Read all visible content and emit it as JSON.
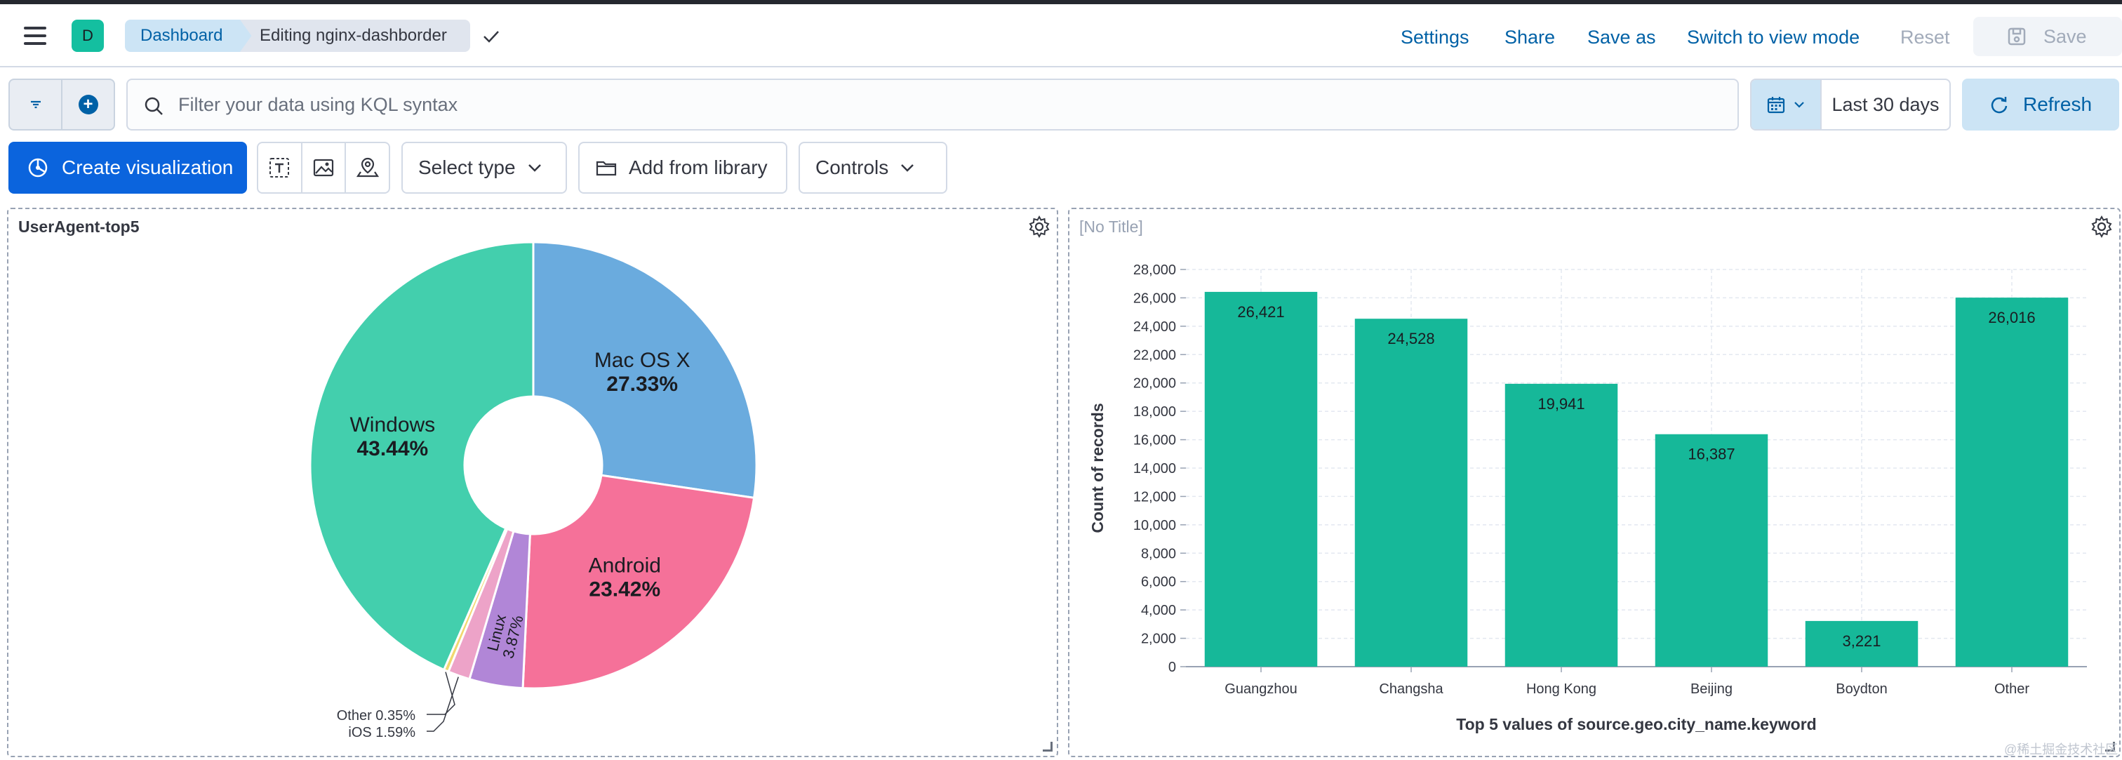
{
  "header": {
    "space_initial": "D",
    "breadcrumbs": [
      "Dashboard",
      "Editing nginx-dashborder"
    ],
    "links": {
      "settings": "Settings",
      "share": "Share",
      "save_as": "Save as",
      "switch_mode": "Switch to view mode",
      "reset": "Reset",
      "save": "Save"
    }
  },
  "query_bar": {
    "placeholder": "Filter your data using KQL syntax",
    "date_range": "Last 30 days",
    "refresh_label": "Refresh"
  },
  "toolbar": {
    "create_label": "Create visualization",
    "select_type_label": "Select type",
    "add_library_label": "Add from library",
    "controls_label": "Controls"
  },
  "panels": {
    "pie": {
      "title": "UserAgent-top5"
    },
    "bar": {
      "title": "[No Title]"
    }
  },
  "chart_data": [
    {
      "type": "pie",
      "title": "UserAgent-top5",
      "slices": [
        {
          "label": "Mac OS X",
          "value": 27.33,
          "display": "27.33%",
          "color": "#6aabde"
        },
        {
          "label": "Android",
          "value": 23.42,
          "display": "23.42%",
          "color": "#f57199"
        },
        {
          "label": "Linux",
          "value": 3.87,
          "display": "3.87%",
          "color": "#b186d7"
        },
        {
          "label": "iOS",
          "value": 1.59,
          "display": "1.59%",
          "color": "#eda3c8"
        },
        {
          "label": "Other",
          "value": 0.35,
          "display": "0.35%",
          "color": "#f1d86f"
        },
        {
          "label": "Windows",
          "value": 43.44,
          "display": "43.44%",
          "color": "#43cfad"
        }
      ]
    },
    {
      "type": "bar",
      "title": "",
      "categories": [
        "Guangzhou",
        "Changsha",
        "Hong Kong",
        "Beijing",
        "Boydton",
        "Other"
      ],
      "values": [
        26421,
        24528,
        19941,
        16387,
        3221,
        26016
      ],
      "value_labels": [
        "26,421",
        "24,528",
        "19,941",
        "16,387",
        "3,221",
        "26,016"
      ],
      "xlabel": "Top 5 values of source.geo.city_name.keyword",
      "ylabel": "Count of records",
      "ylim": [
        0,
        28000
      ],
      "yticks": [
        "0",
        "2,000",
        "4,000",
        "6,000",
        "8,000",
        "10,000",
        "12,000",
        "14,000",
        "16,000",
        "18,000",
        "20,000",
        "22,000",
        "24,000",
        "26,000",
        "28,000"
      ],
      "bar_color": "#16b899",
      "grid": true
    }
  ],
  "watermark": "@稀土掘金技术社区"
}
